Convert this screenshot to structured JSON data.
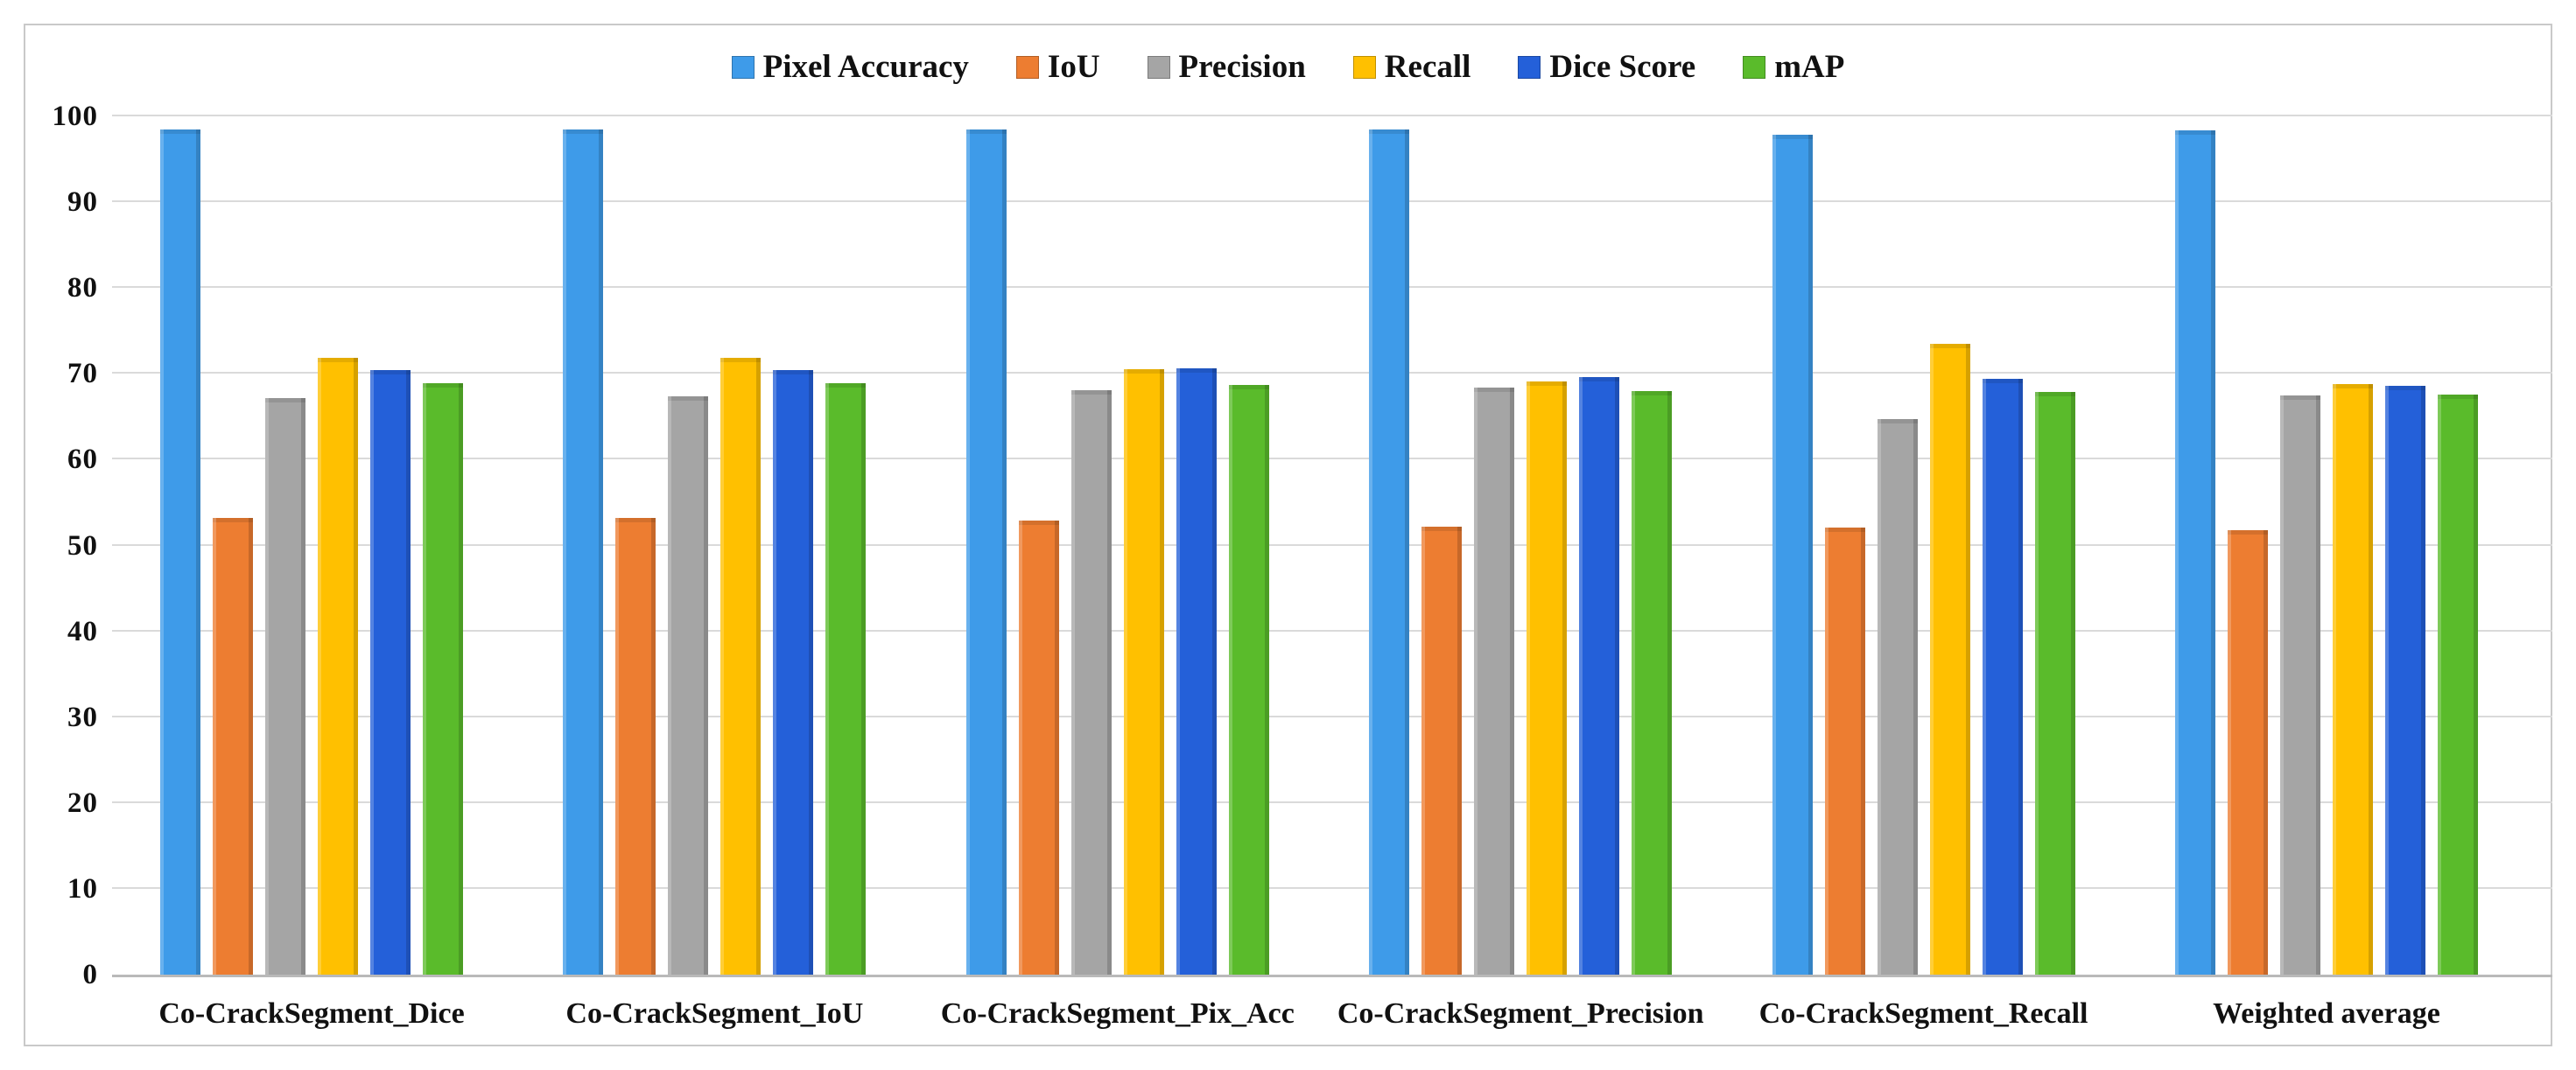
{
  "figure": {
    "background": "#FFFFFF",
    "border_color": "#C9C9C9",
    "text_color": "#111111",
    "gridline_color": "#DADADA",
    "axis_line_color": "#B9B9B9"
  },
  "chart_data": {
    "type": "bar",
    "title": "",
    "xlabel": "",
    "ylabel": "",
    "legend_position": "top",
    "grid": true,
    "ylim": [
      0,
      100
    ],
    "yticks": [
      0,
      10,
      20,
      30,
      40,
      50,
      60,
      70,
      80,
      90,
      100
    ],
    "categories": [
      "Co-CrackSegment_Dice",
      "Co-CrackSegment_IoU",
      "Co-CrackSegment_Pix_Acc",
      "Co-CrackSegment_Precision",
      "Co-CrackSegment_Recall",
      "Weighted average"
    ],
    "series": [
      {
        "name": "Pixel Accuracy",
        "color": "#3E9BE9",
        "values": [
          98.5,
          98.5,
          98.5,
          98.5,
          97.9,
          98.4
        ]
      },
      {
        "name": "IoU",
        "color": "#ED7D31",
        "values": [
          53.2,
          53.2,
          52.9,
          52.2,
          52.1,
          51.8
        ]
      },
      {
        "name": "Precision",
        "color": "#A5A5A5",
        "values": [
          67.2,
          67.4,
          68.1,
          68.4,
          64.7,
          67.5
        ]
      },
      {
        "name": "Recall",
        "color": "#FFC000",
        "values": [
          71.9,
          71.9,
          70.5,
          69.1,
          73.5,
          68.8
        ]
      },
      {
        "name": "Dice Score",
        "color": "#2460D9",
        "values": [
          70.4,
          70.4,
          70.6,
          69.6,
          69.4,
          68.6
        ]
      },
      {
        "name": "mAP",
        "color": "#5ABB2B",
        "values": [
          68.9,
          68.9,
          68.7,
          68.0,
          67.9,
          67.6
        ]
      }
    ]
  }
}
